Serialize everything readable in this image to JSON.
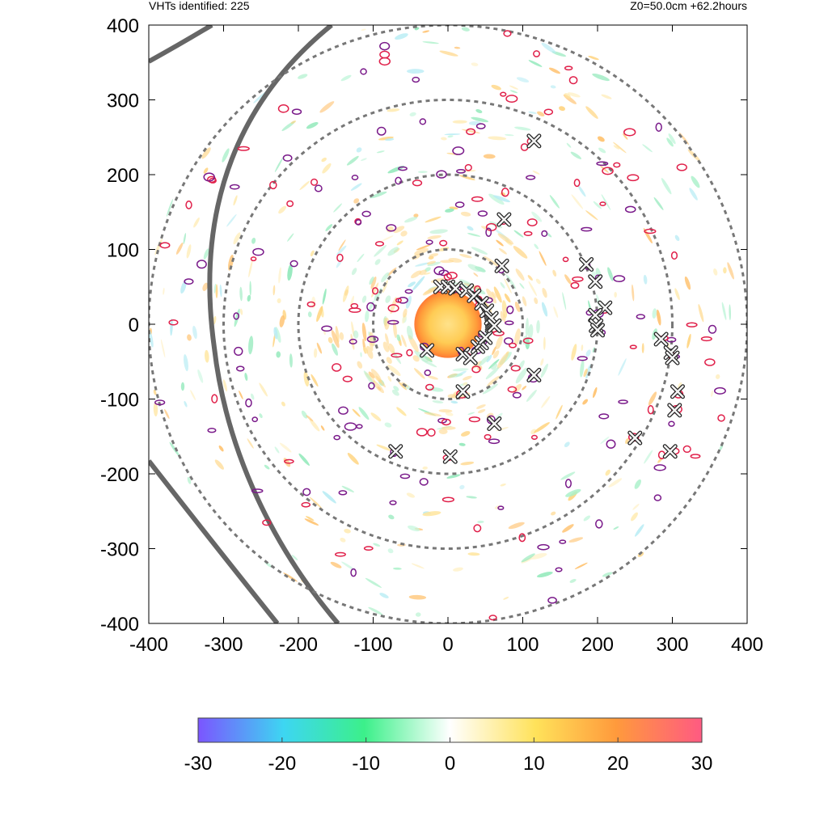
{
  "header": {
    "left_text": "VHTs identified: 225",
    "right_text": "Z0=50.0cm  +62.2hours"
  },
  "chart_data": {
    "type": "scatter",
    "title": "",
    "xlabel": "",
    "ylabel": "",
    "xlim": [
      -400,
      400
    ],
    "ylim": [
      -400,
      400
    ],
    "x_ticks": [
      "-400",
      "-300",
      "-200",
      "-100",
      "0",
      "100",
      "200",
      "300",
      "400"
    ],
    "y_ticks": [
      "400",
      "300",
      "200",
      "100",
      "0",
      "-100",
      "-200",
      "-300",
      "-400"
    ],
    "grid": false,
    "range_rings": [
      100,
      200,
      300,
      400
    ],
    "core_radius": 45,
    "vht_markers": [
      {
        "x": 115,
        "y": 245
      },
      {
        "x": 75,
        "y": 140
      },
      {
        "x": 72,
        "y": 78
      },
      {
        "x": 185,
        "y": 80
      },
      {
        "x": 197,
        "y": 57
      },
      {
        "x": 210,
        "y": 22
      },
      {
        "x": 197,
        "y": 12
      },
      {
        "x": 198,
        "y": -2
      },
      {
        "x": 200,
        "y": -8
      },
      {
        "x": 285,
        "y": -20
      },
      {
        "x": 298,
        "y": -38
      },
      {
        "x": 300,
        "y": -45
      },
      {
        "x": 307,
        "y": -90
      },
      {
        "x": 303,
        "y": -115
      },
      {
        "x": 297,
        "y": -170
      },
      {
        "x": 250,
        "y": -152
      },
      {
        "x": -28,
        "y": -35
      },
      {
        "x": 20,
        "y": -40
      },
      {
        "x": 30,
        "y": -45
      },
      {
        "x": 40,
        "y": -30
      },
      {
        "x": 45,
        "y": -25
      },
      {
        "x": 50,
        "y": -18
      },
      {
        "x": 20,
        "y": -90
      },
      {
        "x": 115,
        "y": -68
      },
      {
        "x": 62,
        "y": -133
      },
      {
        "x": 3,
        "y": -177
      },
      {
        "x": -70,
        "y": -170
      },
      {
        "x": -10,
        "y": 50
      },
      {
        "x": 0,
        "y": 50
      },
      {
        "x": 10,
        "y": 48
      },
      {
        "x": 25,
        "y": 45
      },
      {
        "x": 35,
        "y": 38
      },
      {
        "x": 45,
        "y": 28
      },
      {
        "x": 52,
        "y": 18
      },
      {
        "x": 58,
        "y": 8
      },
      {
        "x": 62,
        "y": -2
      }
    ],
    "colorbar": {
      "min": -30,
      "max": 30,
      "ticks": [
        "-30",
        "-20",
        "-10",
        "0",
        "10",
        "20",
        "30"
      ],
      "colors": [
        "#7b55ff",
        "#3dd6f2",
        "#3cf08a",
        "#ffffff",
        "#ffe25a",
        "#ff9a3c",
        "#ff5a82"
      ]
    }
  }
}
